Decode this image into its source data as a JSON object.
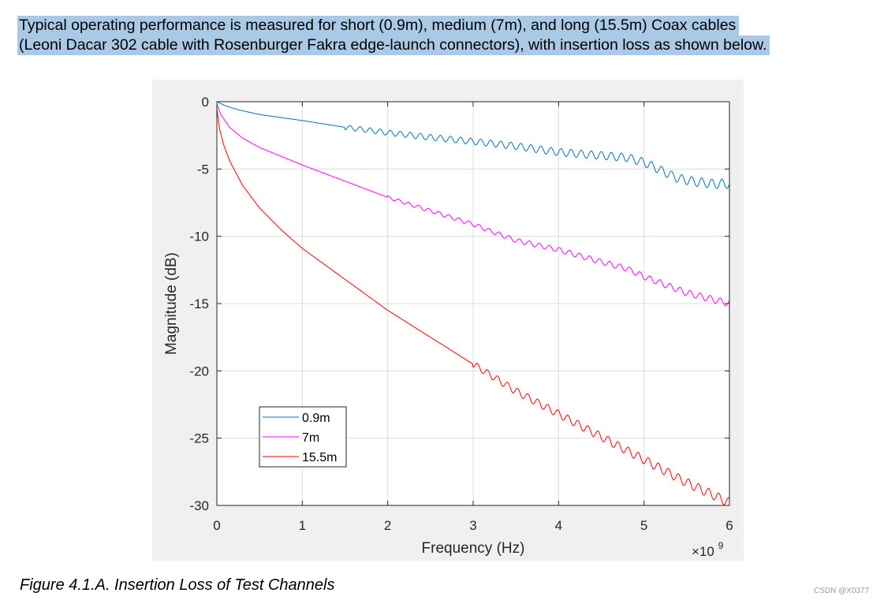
{
  "intro": {
    "line1": "Typical operating performance is measured for short (0.9m), medium (7m), and long (15.5m) Coax cables",
    "line2": "(Leoni Dacar 302 cable with Rosenburger Fakra edge-launch connectors), with insertion loss as shown below."
  },
  "caption": "Figure 4.1.A. Insertion Loss of Test Channels",
  "watermark": "CSDN @X0377",
  "chart_data": {
    "type": "line",
    "title": "",
    "xlabel": "Frequency (Hz)",
    "ylabel": "Magnitude (dB)",
    "x_exponent_label": "×10",
    "x_exponent_power": "9",
    "xlim": [
      0,
      6
    ],
    "ylim": [
      -30,
      0
    ],
    "xticks": [
      0,
      1,
      2,
      3,
      4,
      5,
      6
    ],
    "yticks": [
      0,
      -5,
      -10,
      -15,
      -20,
      -25,
      -30
    ],
    "xtick_labels": [
      "0",
      "1",
      "2",
      "3",
      "4",
      "5",
      "6"
    ],
    "ytick_labels": [
      "0",
      "-5",
      "-10",
      "-15",
      "-20",
      "-25",
      "-30"
    ],
    "grid": true,
    "legend_position": "lower-left",
    "x_units_note": "frequency in units of 1e9 Hz",
    "series": [
      {
        "name": "0.9m",
        "color": "#0072bd",
        "x": [
          0,
          0.1,
          0.25,
          0.5,
          1.0,
          1.5,
          2.0,
          2.5,
          3.0,
          3.5,
          4.0,
          4.5,
          4.8,
          5.0,
          5.2,
          5.4,
          5.6,
          5.8,
          6.0
        ],
        "y": [
          0,
          -0.3,
          -0.6,
          -0.95,
          -1.4,
          -1.9,
          -2.3,
          -2.65,
          -2.95,
          -3.3,
          -3.75,
          -4.0,
          -4.15,
          -4.5,
          -5.1,
          -5.7,
          -5.95,
          -6.1,
          -6.1
        ],
        "ripple_from": 1.5,
        "ripple_amp": 0.18,
        "ripple_amp_end": 0.35
      },
      {
        "name": "7m",
        "color": "#ff00ff",
        "x": [
          0,
          0.05,
          0.15,
          0.3,
          0.5,
          1.0,
          1.5,
          2.0,
          2.5,
          3.0,
          3.2,
          3.5,
          4.0,
          4.5,
          4.8,
          5.0,
          5.5,
          6.0
        ],
        "y": [
          -0.2,
          -1.0,
          -1.9,
          -2.7,
          -3.4,
          -4.7,
          -5.9,
          -7.1,
          -8.1,
          -9.1,
          -9.6,
          -10.3,
          -11.0,
          -11.9,
          -12.4,
          -13.0,
          -14.2,
          -15.0
        ],
        "ripple_from": 2.0,
        "ripple_amp": 0.12,
        "ripple_amp_end": 0.25
      },
      {
        "name": "15.5m",
        "color": "#ff0000",
        "x": [
          0,
          0.03,
          0.08,
          0.15,
          0.3,
          0.5,
          0.75,
          1.0,
          1.5,
          2.0,
          2.5,
          3.0,
          3.5,
          4.0,
          4.5,
          5.0,
          5.5,
          5.8,
          6.0
        ],
        "y": [
          -0.5,
          -2.0,
          -3.2,
          -4.4,
          -6.2,
          -7.9,
          -9.5,
          -10.9,
          -13.2,
          -15.5,
          -17.5,
          -19.5,
          -21.5,
          -23.2,
          -24.9,
          -26.6,
          -28.3,
          -29.2,
          -29.8
        ],
        "ripple_from": 3.0,
        "ripple_amp": 0.25,
        "ripple_amp_end": 0.35
      }
    ]
  }
}
